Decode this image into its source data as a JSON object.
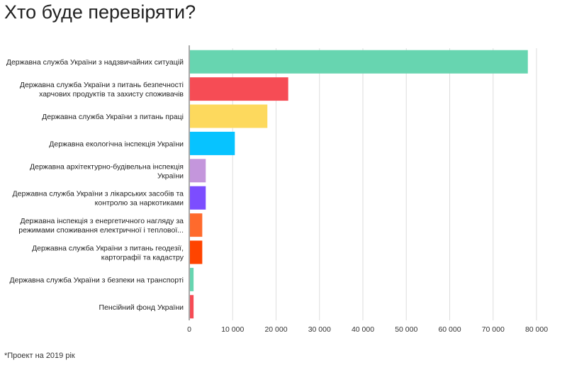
{
  "chart_data": {
    "type": "bar",
    "orientation": "horizontal",
    "title": "Хто буде перевіряти?",
    "categories": [
      [
        "Державна служба України з надзвичайних ситуацій"
      ],
      [
        "Державна служба України з питань безпечності",
        "харчових продуктів та захисту споживачів"
      ],
      [
        "Державна служба України з питань праці"
      ],
      [
        "Державна екологічна інспекція України"
      ],
      [
        "Державна архітектурно-будівельна інспекція",
        "України"
      ],
      [
        "Державна служба України з лікарських засобів та",
        "контролю за наркотиками"
      ],
      [
        "Державна інспекція з енергетичного нагляду за",
        "режимами споживання електричної і теплової..."
      ],
      [
        "Державна служба України з питань геодезії,",
        "картографії та кадастру"
      ],
      [
        "Державна служба України з безпеки на транспорті"
      ],
      [
        "Пенсійний фонд України"
      ]
    ],
    "values": [
      78000,
      22800,
      18000,
      10500,
      3800,
      3800,
      3000,
      3000,
      1000,
      1000
    ],
    "colors": [
      "#67d5b0",
      "#f64c55",
      "#fdd95d",
      "#07c3ff",
      "#c496dc",
      "#7c4dff",
      "#ff6a2c",
      "#ff4400",
      "#67d5b0",
      "#f64c55"
    ],
    "xlim": [
      0,
      80000
    ],
    "xticks": [
      0,
      10000,
      20000,
      30000,
      40000,
      50000,
      60000,
      70000,
      80000
    ],
    "xtick_labels": [
      "0",
      "10 000",
      "20 000",
      "30 000",
      "40 000",
      "50 000",
      "60 000",
      "70 000",
      "80 000"
    ],
    "grid": true,
    "xlabel": "",
    "ylabel": ""
  },
  "footnote": "*Проект на 2019 рік",
  "colors": {
    "grid": "#dddddd",
    "axis": "#555555"
  }
}
